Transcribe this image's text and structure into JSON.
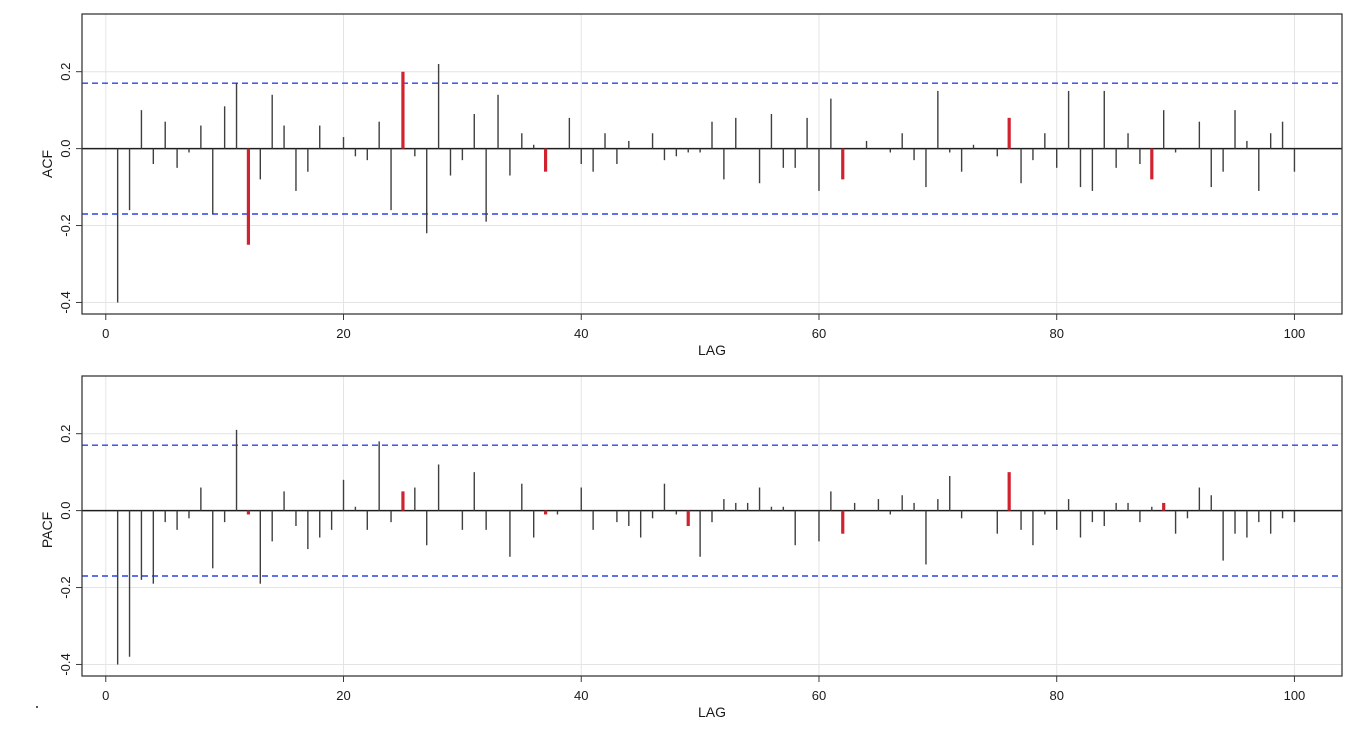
{
  "chart_data": [
    {
      "type": "bar",
      "title": "",
      "xlabel": "LAG",
      "ylabel": "ACF",
      "xlim": [
        -2,
        104
      ],
      "ylim": [
        -0.43,
        0.35
      ],
      "x_ticks": [
        0,
        20,
        40,
        60,
        80,
        100
      ],
      "y_ticks": [
        -0.4,
        -0.2,
        0.0,
        0.2
      ],
      "grid": true,
      "confidence_band": [
        -0.17,
        0.17
      ],
      "colors": {
        "bar": "#3f3f3f",
        "highlight": "#d0222f",
        "band": "#2b44e6",
        "grid": "#e4e4e4",
        "frame": "#3a3a3a"
      },
      "highlighted_lags": [
        12,
        25,
        37,
        62,
        76,
        88
      ],
      "x": [
        1,
        2,
        3,
        4,
        5,
        6,
        7,
        8,
        9,
        10,
        11,
        12,
        13,
        14,
        15,
        16,
        17,
        18,
        19,
        20,
        21,
        22,
        23,
        24,
        25,
        26,
        27,
        28,
        29,
        30,
        31,
        32,
        33,
        34,
        35,
        36,
        37,
        38,
        39,
        40,
        41,
        42,
        43,
        44,
        45,
        46,
        47,
        48,
        49,
        50,
        51,
        52,
        53,
        54,
        55,
        56,
        57,
        58,
        59,
        60,
        61,
        62,
        63,
        64,
        65,
        66,
        67,
        68,
        69,
        70,
        71,
        72,
        73,
        74,
        75,
        76,
        77,
        78,
        79,
        80,
        81,
        82,
        83,
        84,
        85,
        86,
        87,
        88,
        89,
        90,
        91,
        92,
        93,
        94,
        95,
        96,
        97,
        98,
        99,
        100
      ],
      "values": [
        -0.4,
        -0.16,
        0.1,
        -0.04,
        0.07,
        -0.05,
        -0.01,
        0.06,
        -0.17,
        0.11,
        0.17,
        -0.25,
        -0.08,
        0.14,
        0.06,
        -0.11,
        -0.06,
        0.06,
        0.0,
        0.03,
        -0.02,
        -0.03,
        0.07,
        -0.16,
        0.2,
        -0.02,
        -0.22,
        0.22,
        -0.07,
        -0.03,
        0.09,
        -0.19,
        0.14,
        -0.07,
        0.04,
        0.01,
        -0.06,
        0.0,
        0.08,
        -0.04,
        -0.06,
        0.04,
        -0.04,
        0.02,
        0.0,
        0.04,
        -0.03,
        -0.02,
        -0.01,
        -0.01,
        0.07,
        -0.08,
        0.08,
        0.0,
        -0.09,
        0.09,
        -0.05,
        -0.05,
        0.08,
        -0.11,
        0.13,
        -0.08,
        0.0,
        0.02,
        0.0,
        -0.01,
        0.04,
        -0.03,
        -0.1,
        0.15,
        -0.01,
        -0.06,
        0.01,
        0.0,
        -0.02,
        0.08,
        -0.09,
        -0.03,
        0.04,
        -0.05,
        0.15,
        -0.1,
        -0.11,
        0.15,
        -0.05,
        0.04,
        -0.04,
        -0.08,
        0.1,
        -0.01,
        0.0,
        0.07,
        -0.1,
        -0.06,
        0.1,
        0.02,
        -0.11,
        0.04,
        0.07,
        -0.06
      ]
    },
    {
      "type": "bar",
      "title": "",
      "xlabel": "LAG",
      "ylabel": "PACF",
      "xlim": [
        -2,
        104
      ],
      "ylim": [
        -0.43,
        0.35
      ],
      "x_ticks": [
        0,
        20,
        40,
        60,
        80,
        100
      ],
      "y_ticks": [
        -0.4,
        -0.2,
        0.0,
        0.2
      ],
      "grid": true,
      "confidence_band": [
        -0.17,
        0.17
      ],
      "colors": {
        "bar": "#3f3f3f",
        "highlight": "#d0222f",
        "band": "#2b44e6",
        "grid": "#e4e4e4",
        "frame": "#3a3a3a"
      },
      "highlighted_lags": [
        12,
        25,
        37,
        49,
        62,
        76,
        89
      ],
      "x": [
        1,
        2,
        3,
        4,
        5,
        6,
        7,
        8,
        9,
        10,
        11,
        12,
        13,
        14,
        15,
        16,
        17,
        18,
        19,
        20,
        21,
        22,
        23,
        24,
        25,
        26,
        27,
        28,
        29,
        30,
        31,
        32,
        33,
        34,
        35,
        36,
        37,
        38,
        39,
        40,
        41,
        42,
        43,
        44,
        45,
        46,
        47,
        48,
        49,
        50,
        51,
        52,
        53,
        54,
        55,
        56,
        57,
        58,
        59,
        60,
        61,
        62,
        63,
        64,
        65,
        66,
        67,
        68,
        69,
        70,
        71,
        72,
        73,
        74,
        75,
        76,
        77,
        78,
        79,
        80,
        81,
        82,
        83,
        84,
        85,
        86,
        87,
        88,
        89,
        90,
        91,
        92,
        93,
        94,
        95,
        96,
        97,
        98,
        99,
        100
      ],
      "values": [
        -0.4,
        -0.38,
        -0.18,
        -0.19,
        -0.03,
        -0.05,
        -0.02,
        0.06,
        -0.15,
        -0.03,
        0.21,
        -0.01,
        -0.19,
        -0.08,
        0.05,
        -0.04,
        -0.1,
        -0.07,
        -0.05,
        0.08,
        0.01,
        -0.05,
        0.18,
        -0.03,
        0.05,
        0.06,
        -0.09,
        0.12,
        0.0,
        -0.05,
        0.1,
        -0.05,
        0.0,
        -0.12,
        0.07,
        -0.07,
        -0.01,
        -0.01,
        0.0,
        0.06,
        -0.05,
        0.0,
        -0.03,
        -0.04,
        -0.07,
        -0.02,
        0.07,
        -0.01,
        -0.04,
        -0.12,
        -0.03,
        0.03,
        0.02,
        0.02,
        0.06,
        0.01,
        0.01,
        -0.09,
        0.0,
        -0.08,
        0.05,
        -0.06,
        0.02,
        0.0,
        0.03,
        -0.01,
        0.04,
        0.02,
        -0.14,
        0.03,
        0.09,
        -0.02,
        0.0,
        0.0,
        -0.06,
        0.1,
        -0.05,
        -0.09,
        -0.01,
        -0.05,
        0.03,
        -0.07,
        -0.03,
        -0.04,
        0.02,
        0.02,
        -0.03,
        0.01,
        0.02,
        -0.06,
        -0.02,
        0.06,
        0.04,
        -0.13,
        -0.06,
        -0.07,
        -0.03,
        -0.06,
        -0.02,
        -0.03
      ]
    }
  ]
}
